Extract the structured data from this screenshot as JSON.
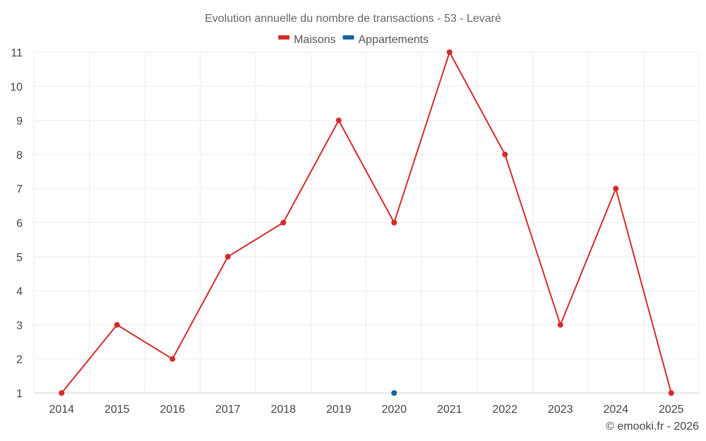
{
  "chart_data": {
    "type": "line",
    "title": "Evolution annuelle du nombre de transactions - 53 - Levaré",
    "categories": [
      "2014",
      "2015",
      "2016",
      "2017",
      "2018",
      "2019",
      "2020",
      "2021",
      "2022",
      "2023",
      "2024",
      "2025"
    ],
    "series": [
      {
        "name": "Maisons",
        "color": "#d32b2b",
        "values": [
          1,
          3,
          2,
          5,
          6,
          9,
          6,
          11,
          8,
          3,
          7,
          1
        ]
      },
      {
        "name": "Appartements",
        "color": "#1565a0",
        "values": [
          null,
          null,
          null,
          null,
          null,
          null,
          1,
          null,
          null,
          null,
          null,
          null
        ]
      }
    ],
    "yticks": [
      "1",
      "2",
      "3",
      "4",
      "5",
      "6",
      "7",
      "8",
      "9",
      "10",
      "11"
    ],
    "ylim": [
      1,
      11
    ],
    "xlabel": "",
    "ylabel": "",
    "grid": true,
    "legend_position": "top-center"
  },
  "credit": "© emooki.fr - 2026"
}
